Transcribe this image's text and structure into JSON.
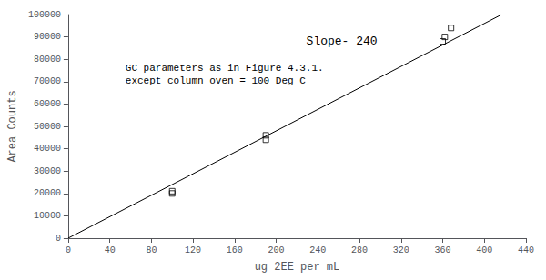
{
  "chart_data": {
    "type": "scatter",
    "xlabel": "ug 2EE per mL",
    "ylabel": "Area Counts",
    "xlim": [
      0,
      440
    ],
    "ylim": [
      0,
      100000
    ],
    "xticks": [
      0,
      40,
      80,
      120,
      160,
      200,
      240,
      280,
      320,
      360,
      400,
      440
    ],
    "yticks": [
      0,
      10000,
      20000,
      30000,
      40000,
      50000,
      60000,
      70000,
      80000,
      90000,
      100000
    ],
    "grid": false,
    "series": [
      {
        "type": "line",
        "color": "#000000",
        "line_style": "solid",
        "x": [
          0,
          416
        ],
        "values": [
          0,
          99840
        ]
      },
      {
        "type": "scatter",
        "color": "#000000",
        "marker": "square",
        "x": [
          100,
          100,
          190,
          190,
          360,
          362,
          368
        ],
        "values": [
          21000,
          20000,
          46000,
          44000,
          88000,
          90000,
          94000
        ]
      }
    ],
    "annotations": [
      "Slope- 240",
      "GC parameters as in Figure 4.3.1.\nexcept column oven = 100 Deg C"
    ]
  }
}
